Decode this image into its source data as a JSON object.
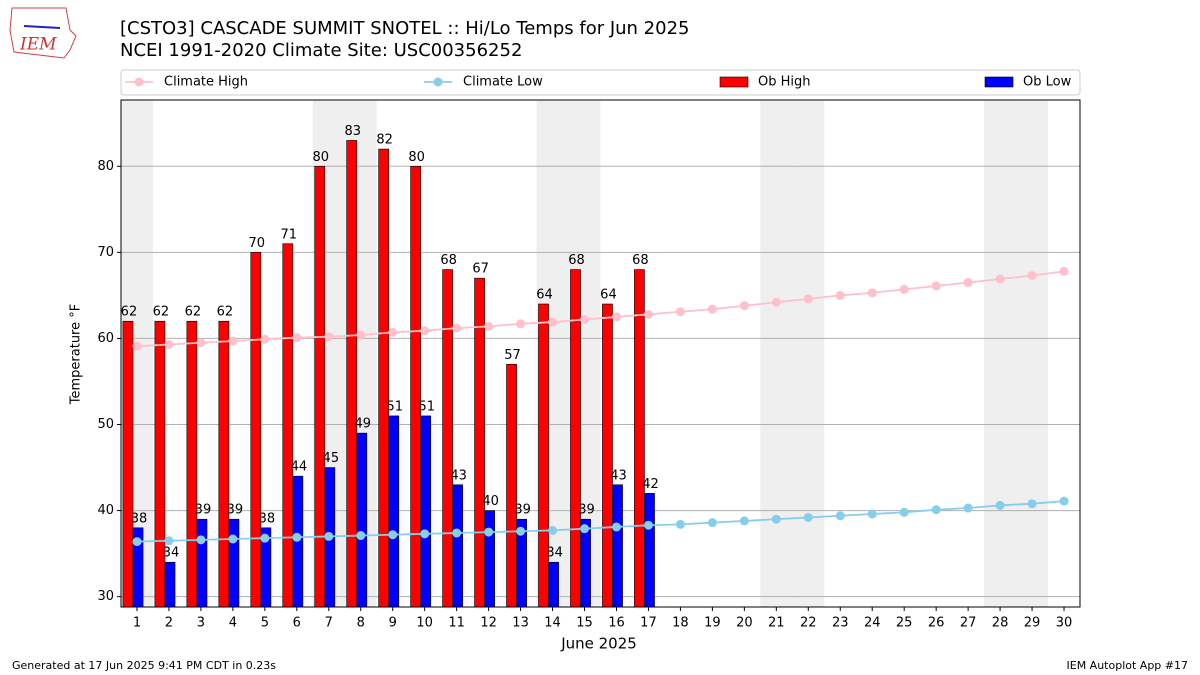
{
  "chart_data": {
    "type": "bar_line",
    "title": "[CSTO3] CASCADE SUMMIT SNOTEL :: Hi/Lo Temps for Jun 2025",
    "subtitle": "NCEI 1991-2020 Climate Site: USC00356252",
    "y_label": "Temperature °F",
    "x_label": "June 2025",
    "logo": "IEM",
    "footer_left": "Generated at 17 Jun 2025 9:41 PM CDT in 0.23s",
    "footer_right": "IEM Autoplot App #17",
    "x": [
      1,
      2,
      3,
      4,
      5,
      6,
      7,
      8,
      9,
      10,
      11,
      12,
      13,
      14,
      15,
      16,
      17,
      18,
      19,
      20,
      21,
      22,
      23,
      24,
      25,
      26,
      27,
      28,
      29,
      30
    ],
    "xlim": [
      0.5,
      30.5
    ],
    "xticks": [
      1,
      2,
      3,
      4,
      5,
      6,
      7,
      8,
      9,
      10,
      11,
      12,
      13,
      14,
      15,
      16,
      17,
      18,
      19,
      20,
      21,
      22,
      23,
      24,
      25,
      26,
      27,
      28,
      29,
      30
    ],
    "ylim": [
      28.8,
      87.7
    ],
    "yticks": [
      30,
      40,
      50,
      60,
      70,
      80
    ],
    "grid": true,
    "shaded_days": [
      1,
      7,
      8,
      14,
      15,
      21,
      22,
      28,
      29
    ],
    "series": [
      {
        "name": "Climate High",
        "kind": "line",
        "color": "#ffc0cb",
        "values": [
          59.1,
          59.3,
          59.5,
          59.7,
          59.9,
          60.1,
          60.2,
          60.4,
          60.7,
          60.9,
          61.2,
          61.4,
          61.7,
          61.9,
          62.2,
          62.5,
          62.8,
          63.1,
          63.4,
          63.8,
          64.2,
          64.6,
          65.0,
          65.3,
          65.7,
          66.1,
          66.5,
          66.9,
          67.3,
          67.8
        ]
      },
      {
        "name": "Climate Low",
        "kind": "line",
        "color": "#87ceeb",
        "values": [
          36.4,
          36.5,
          36.6,
          36.7,
          36.8,
          36.9,
          37.0,
          37.1,
          37.2,
          37.3,
          37.4,
          37.5,
          37.6,
          37.7,
          37.9,
          38.1,
          38.3,
          38.4,
          38.6,
          38.8,
          39.0,
          39.2,
          39.4,
          39.6,
          39.8,
          40.1,
          40.3,
          40.6,
          40.8,
          41.1
        ]
      },
      {
        "name": "Ob High",
        "kind": "bar",
        "color": "#ff0000",
        "values": [
          62,
          62,
          62,
          62,
          70,
          71,
          80,
          83,
          82,
          80,
          68,
          67,
          57,
          64,
          68,
          64,
          68,
          null,
          null,
          null,
          null,
          null,
          null,
          null,
          null,
          null,
          null,
          null,
          null,
          null
        ]
      },
      {
        "name": "Ob Low",
        "kind": "bar",
        "color": "#0000ff",
        "values": [
          38,
          34,
          39,
          39,
          38,
          44,
          45,
          49,
          51,
          51,
          43,
          40,
          39,
          34,
          39,
          43,
          42,
          null,
          null,
          null,
          null,
          null,
          null,
          null,
          null,
          null,
          null,
          null,
          null,
          null
        ]
      }
    ]
  }
}
